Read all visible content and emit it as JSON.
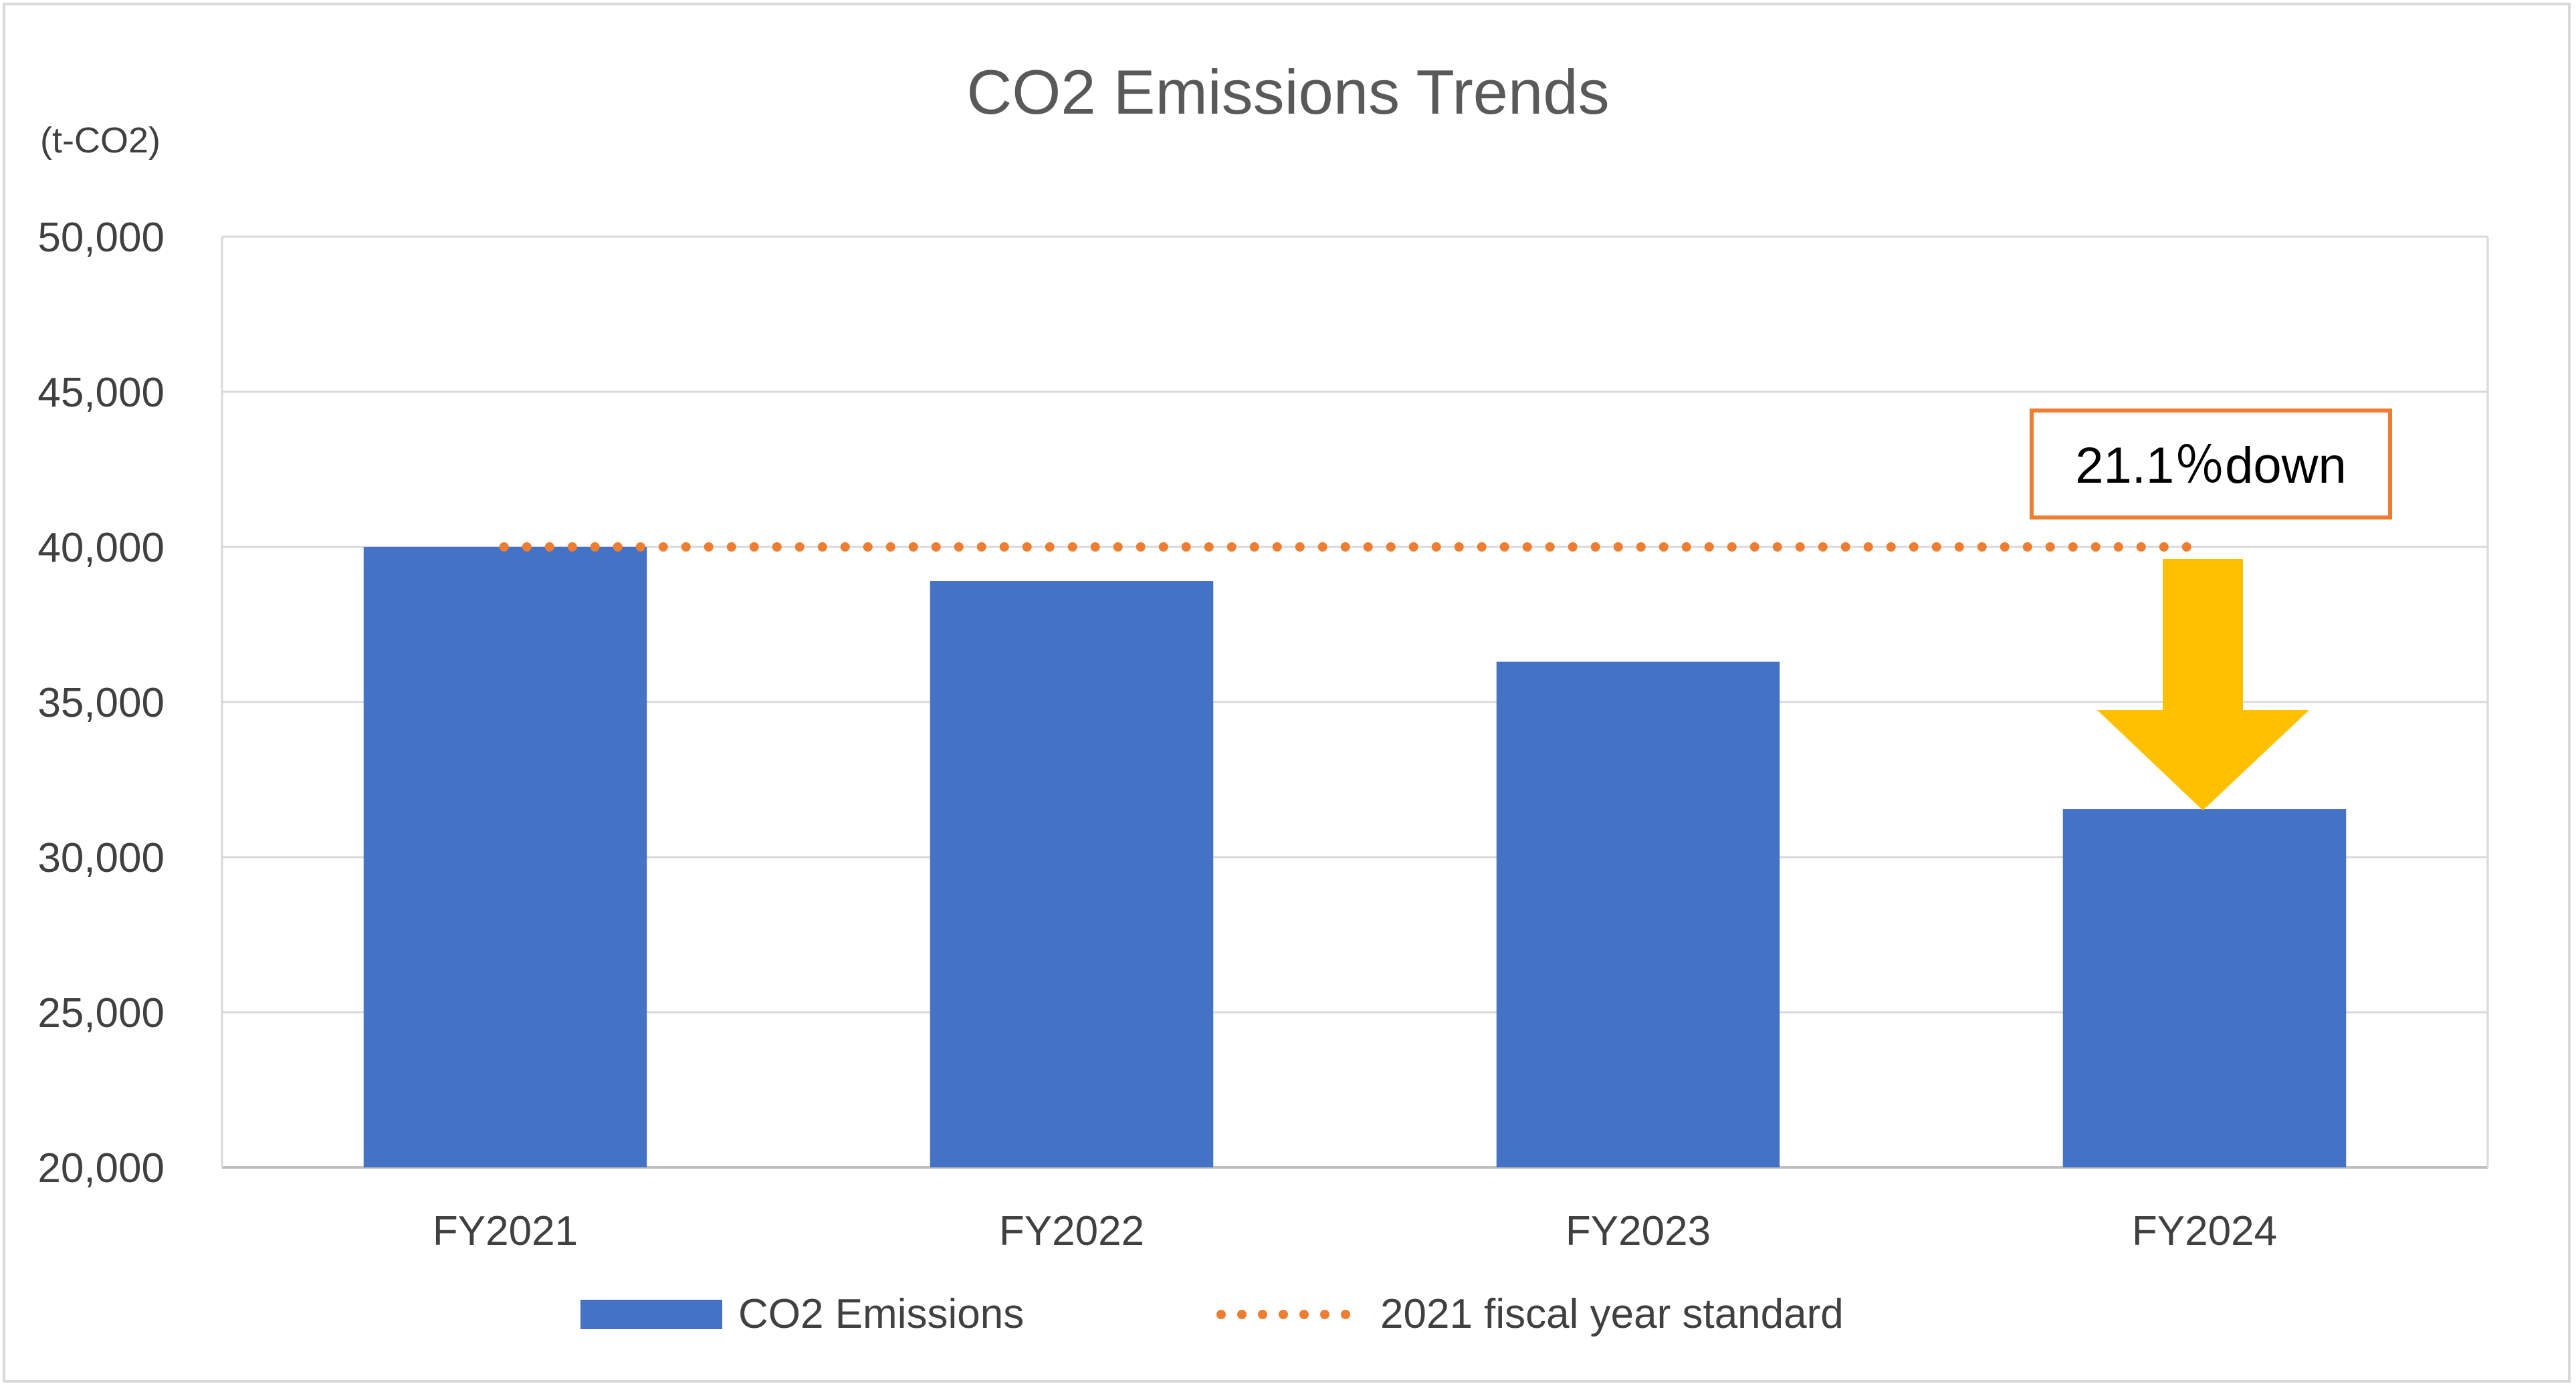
{
  "chart_data": {
    "type": "bar",
    "title": "CO2 Emissions Trends",
    "unit_label": "(t-CO2)",
    "categories": [
      "FY2021",
      "FY2022",
      "FY2023",
      "FY2024"
    ],
    "series": [
      {
        "name": "CO2 Emissions",
        "values": [
          40000,
          38900,
          36300,
          31550
        ],
        "color": "#4472c4"
      }
    ],
    "reference_line": {
      "name": "2021 fiscal year standard",
      "value": 40000,
      "style": "dotted",
      "color": "#ed7d31"
    },
    "y_ticks": [
      "50,000",
      "45,000",
      "40,000",
      "35,000",
      "30,000",
      "25,000",
      "20,000"
    ],
    "ylim": [
      20000,
      50000
    ],
    "grid": true,
    "legend_position": "bottom",
    "annotation": {
      "text": "21.1％down",
      "border_color": "#ed7d31",
      "arrow_color": "#ffc000"
    }
  }
}
